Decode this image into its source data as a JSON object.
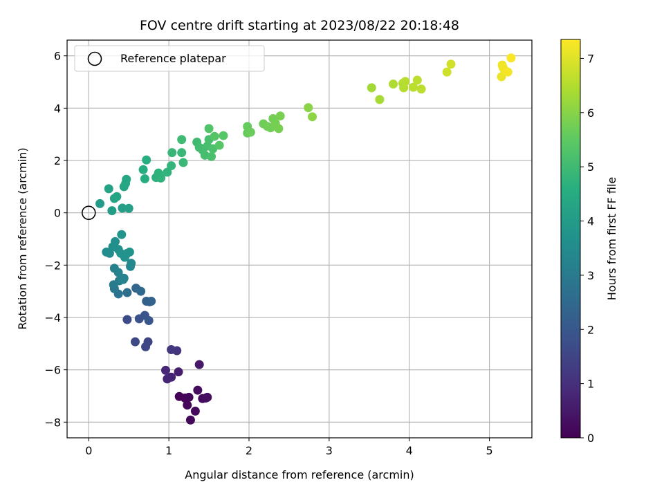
{
  "chart_data": {
    "type": "scatter",
    "title": "FOV centre drift starting at 2023/08/22 20:18:48",
    "xlabel": "Angular distance from reference (arcmin)",
    "ylabel": "Rotation from reference (arcmin)",
    "colorbar_label": "Hours from first FF file",
    "xlim": [
      -0.27,
      5.53
    ],
    "ylim": [
      -8.6,
      6.6
    ],
    "clim": [
      0,
      7.35
    ],
    "x_ticks": [
      0,
      1,
      2,
      3,
      4,
      5
    ],
    "y_ticks": [
      -8,
      -6,
      -4,
      -2,
      0,
      2,
      4,
      6
    ],
    "c_ticks": [
      0,
      1,
      2,
      3,
      4,
      5,
      6,
      7
    ],
    "grid": true,
    "colormap": "viridis",
    "legend": {
      "placement": "upper-left",
      "entries": [
        {
          "label": "Reference platepar",
          "marker": "open-circle"
        }
      ]
    },
    "reference_point": {
      "x": 0,
      "y": 0
    },
    "points": [
      {
        "x": 1.13,
        "y": -7.02,
        "t": 0.05
      },
      {
        "x": 1.2,
        "y": -7.08,
        "t": 0.08
      },
      {
        "x": 1.25,
        "y": -7.05,
        "t": 0.1
      },
      {
        "x": 1.23,
        "y": -7.35,
        "t": 0.12
      },
      {
        "x": 1.27,
        "y": -7.92,
        "t": 0.14
      },
      {
        "x": 1.33,
        "y": -7.58,
        "t": 0.16
      },
      {
        "x": 1.36,
        "y": -6.78,
        "t": 0.2
      },
      {
        "x": 1.42,
        "y": -7.1,
        "t": 0.22
      },
      {
        "x": 1.46,
        "y": -7.08,
        "t": 0.25
      },
      {
        "x": 1.48,
        "y": -7.05,
        "t": 0.28
      },
      {
        "x": 1.38,
        "y": -5.8,
        "t": 0.5
      },
      {
        "x": 1.12,
        "y": -6.08,
        "t": 0.6
      },
      {
        "x": 1.03,
        "y": -6.28,
        "t": 0.7
      },
      {
        "x": 0.98,
        "y": -6.35,
        "t": 0.75
      },
      {
        "x": 0.96,
        "y": -6.02,
        "t": 0.8
      },
      {
        "x": 1.1,
        "y": -5.27,
        "t": 1.1
      },
      {
        "x": 1.03,
        "y": -5.23,
        "t": 1.2
      },
      {
        "x": 0.74,
        "y": -4.93,
        "t": 1.5
      },
      {
        "x": 0.71,
        "y": -5.12,
        "t": 1.55
      },
      {
        "x": 0.58,
        "y": -4.93,
        "t": 1.6
      },
      {
        "x": 0.48,
        "y": -4.08,
        "t": 1.7
      },
      {
        "x": 0.63,
        "y": -4.05,
        "t": 1.85
      },
      {
        "x": 0.7,
        "y": -3.92,
        "t": 1.9
      },
      {
        "x": 0.75,
        "y": -4.12,
        "t": 1.95
      },
      {
        "x": 0.72,
        "y": -3.38,
        "t": 2.2
      },
      {
        "x": 0.76,
        "y": -3.4,
        "t": 2.25
      },
      {
        "x": 0.78,
        "y": -3.38,
        "t": 2.3
      },
      {
        "x": 0.59,
        "y": -2.88,
        "t": 2.4
      },
      {
        "x": 0.65,
        "y": -3.0,
        "t": 2.5
      },
      {
        "x": 0.48,
        "y": -3.05,
        "t": 2.6
      },
      {
        "x": 0.37,
        "y": -3.1,
        "t": 2.8
      },
      {
        "x": 0.32,
        "y": -2.9,
        "t": 2.9
      },
      {
        "x": 0.31,
        "y": -2.75,
        "t": 3.0
      },
      {
        "x": 0.38,
        "y": -2.6,
        "t": 3.1
      },
      {
        "x": 0.44,
        "y": -2.5,
        "t": 3.15
      },
      {
        "x": 0.32,
        "y": -2.12,
        "t": 3.2
      },
      {
        "x": 0.37,
        "y": -2.28,
        "t": 3.25
      },
      {
        "x": 0.43,
        "y": -2.55,
        "t": 3.3
      },
      {
        "x": 0.52,
        "y": -2.05,
        "t": 3.35
      },
      {
        "x": 0.53,
        "y": -1.93,
        "t": 3.4
      },
      {
        "x": 0.26,
        "y": -1.55,
        "t": 3.5
      },
      {
        "x": 0.22,
        "y": -1.5,
        "t": 3.55
      },
      {
        "x": 0.3,
        "y": -1.3,
        "t": 3.6
      },
      {
        "x": 0.33,
        "y": -1.1,
        "t": 3.65
      },
      {
        "x": 0.37,
        "y": -1.4,
        "t": 3.65
      },
      {
        "x": 0.45,
        "y": -1.7,
        "t": 3.7
      },
      {
        "x": 0.48,
        "y": -1.55,
        "t": 3.7
      },
      {
        "x": 0.51,
        "y": -1.5,
        "t": 3.75
      },
      {
        "x": 0.41,
        "y": -0.83,
        "t": 3.8
      },
      {
        "x": 0.4,
        "y": -1.55,
        "t": 3.75
      },
      {
        "x": 0.14,
        "y": 0.35,
        "t": 4.0
      },
      {
        "x": 0.29,
        "y": 0.08,
        "t": 4.05
      },
      {
        "x": 0.42,
        "y": 0.18,
        "t": 4.1
      },
      {
        "x": 0.5,
        "y": 0.17,
        "t": 4.15
      },
      {
        "x": 0.25,
        "y": 0.92,
        "t": 4.2
      },
      {
        "x": 0.32,
        "y": 0.55,
        "t": 4.25
      },
      {
        "x": 0.35,
        "y": 0.62,
        "t": 4.28
      },
      {
        "x": 0.44,
        "y": 1.0,
        "t": 4.3
      },
      {
        "x": 0.46,
        "y": 1.12,
        "t": 4.33
      },
      {
        "x": 0.47,
        "y": 1.28,
        "t": 4.35
      },
      {
        "x": 0.68,
        "y": 1.65,
        "t": 4.5
      },
      {
        "x": 0.7,
        "y": 1.3,
        "t": 4.55
      },
      {
        "x": 0.72,
        "y": 2.02,
        "t": 4.6
      },
      {
        "x": 0.84,
        "y": 1.35,
        "t": 4.65
      },
      {
        "x": 0.87,
        "y": 1.52,
        "t": 4.7
      },
      {
        "x": 0.9,
        "y": 1.33,
        "t": 4.72
      },
      {
        "x": 0.98,
        "y": 1.55,
        "t": 4.75
      },
      {
        "x": 1.03,
        "y": 1.8,
        "t": 4.8
      },
      {
        "x": 1.04,
        "y": 2.3,
        "t": 4.85
      },
      {
        "x": 1.16,
        "y": 2.3,
        "t": 4.9
      },
      {
        "x": 1.18,
        "y": 1.92,
        "t": 4.9
      },
      {
        "x": 1.16,
        "y": 2.8,
        "t": 5.0
      },
      {
        "x": 1.35,
        "y": 2.7,
        "t": 5.0
      },
      {
        "x": 1.38,
        "y": 2.5,
        "t": 5.05
      },
      {
        "x": 1.42,
        "y": 2.4,
        "t": 5.08
      },
      {
        "x": 1.45,
        "y": 2.2,
        "t": 5.1
      },
      {
        "x": 1.48,
        "y": 2.55,
        "t": 5.12
      },
      {
        "x": 1.5,
        "y": 2.8,
        "t": 5.15
      },
      {
        "x": 1.53,
        "y": 2.15,
        "t": 5.18
      },
      {
        "x": 1.55,
        "y": 2.45,
        "t": 5.2
      },
      {
        "x": 1.5,
        "y": 3.22,
        "t": 5.3
      },
      {
        "x": 1.57,
        "y": 2.92,
        "t": 5.35
      },
      {
        "x": 1.63,
        "y": 2.58,
        "t": 5.38
      },
      {
        "x": 1.68,
        "y": 2.95,
        "t": 5.4
      },
      {
        "x": 1.98,
        "y": 3.3,
        "t": 5.6
      },
      {
        "x": 1.98,
        "y": 3.05,
        "t": 5.62
      },
      {
        "x": 2.02,
        "y": 3.08,
        "t": 5.64
      },
      {
        "x": 2.18,
        "y": 3.4,
        "t": 5.7
      },
      {
        "x": 2.23,
        "y": 3.3,
        "t": 5.72
      },
      {
        "x": 2.27,
        "y": 3.25,
        "t": 5.74
      },
      {
        "x": 2.3,
        "y": 3.6,
        "t": 5.76
      },
      {
        "x": 2.33,
        "y": 3.42,
        "t": 5.78
      },
      {
        "x": 2.37,
        "y": 3.22,
        "t": 5.8
      },
      {
        "x": 2.39,
        "y": 3.7,
        "t": 5.82
      },
      {
        "x": 2.74,
        "y": 4.02,
        "t": 6.0
      },
      {
        "x": 2.79,
        "y": 3.67,
        "t": 6.05
      },
      {
        "x": 3.53,
        "y": 4.78,
        "t": 6.3
      },
      {
        "x": 3.63,
        "y": 4.33,
        "t": 6.35
      },
      {
        "x": 3.8,
        "y": 4.92,
        "t": 6.45
      },
      {
        "x": 3.92,
        "y": 4.95,
        "t": 6.5
      },
      {
        "x": 3.93,
        "y": 4.78,
        "t": 6.52
      },
      {
        "x": 3.95,
        "y": 5.02,
        "t": 6.54
      },
      {
        "x": 4.05,
        "y": 4.8,
        "t": 6.58
      },
      {
        "x": 4.1,
        "y": 5.07,
        "t": 6.6
      },
      {
        "x": 4.15,
        "y": 4.73,
        "t": 6.62
      },
      {
        "x": 4.47,
        "y": 5.38,
        "t": 6.8
      },
      {
        "x": 4.52,
        "y": 5.68,
        "t": 6.85
      },
      {
        "x": 5.15,
        "y": 5.2,
        "t": 7.15
      },
      {
        "x": 5.16,
        "y": 5.65,
        "t": 7.18
      },
      {
        "x": 5.17,
        "y": 5.55,
        "t": 7.2
      },
      {
        "x": 5.19,
        "y": 5.45,
        "t": 7.22
      },
      {
        "x": 5.23,
        "y": 5.38,
        "t": 7.25
      },
      {
        "x": 5.27,
        "y": 5.92,
        "t": 7.3
      }
    ]
  }
}
